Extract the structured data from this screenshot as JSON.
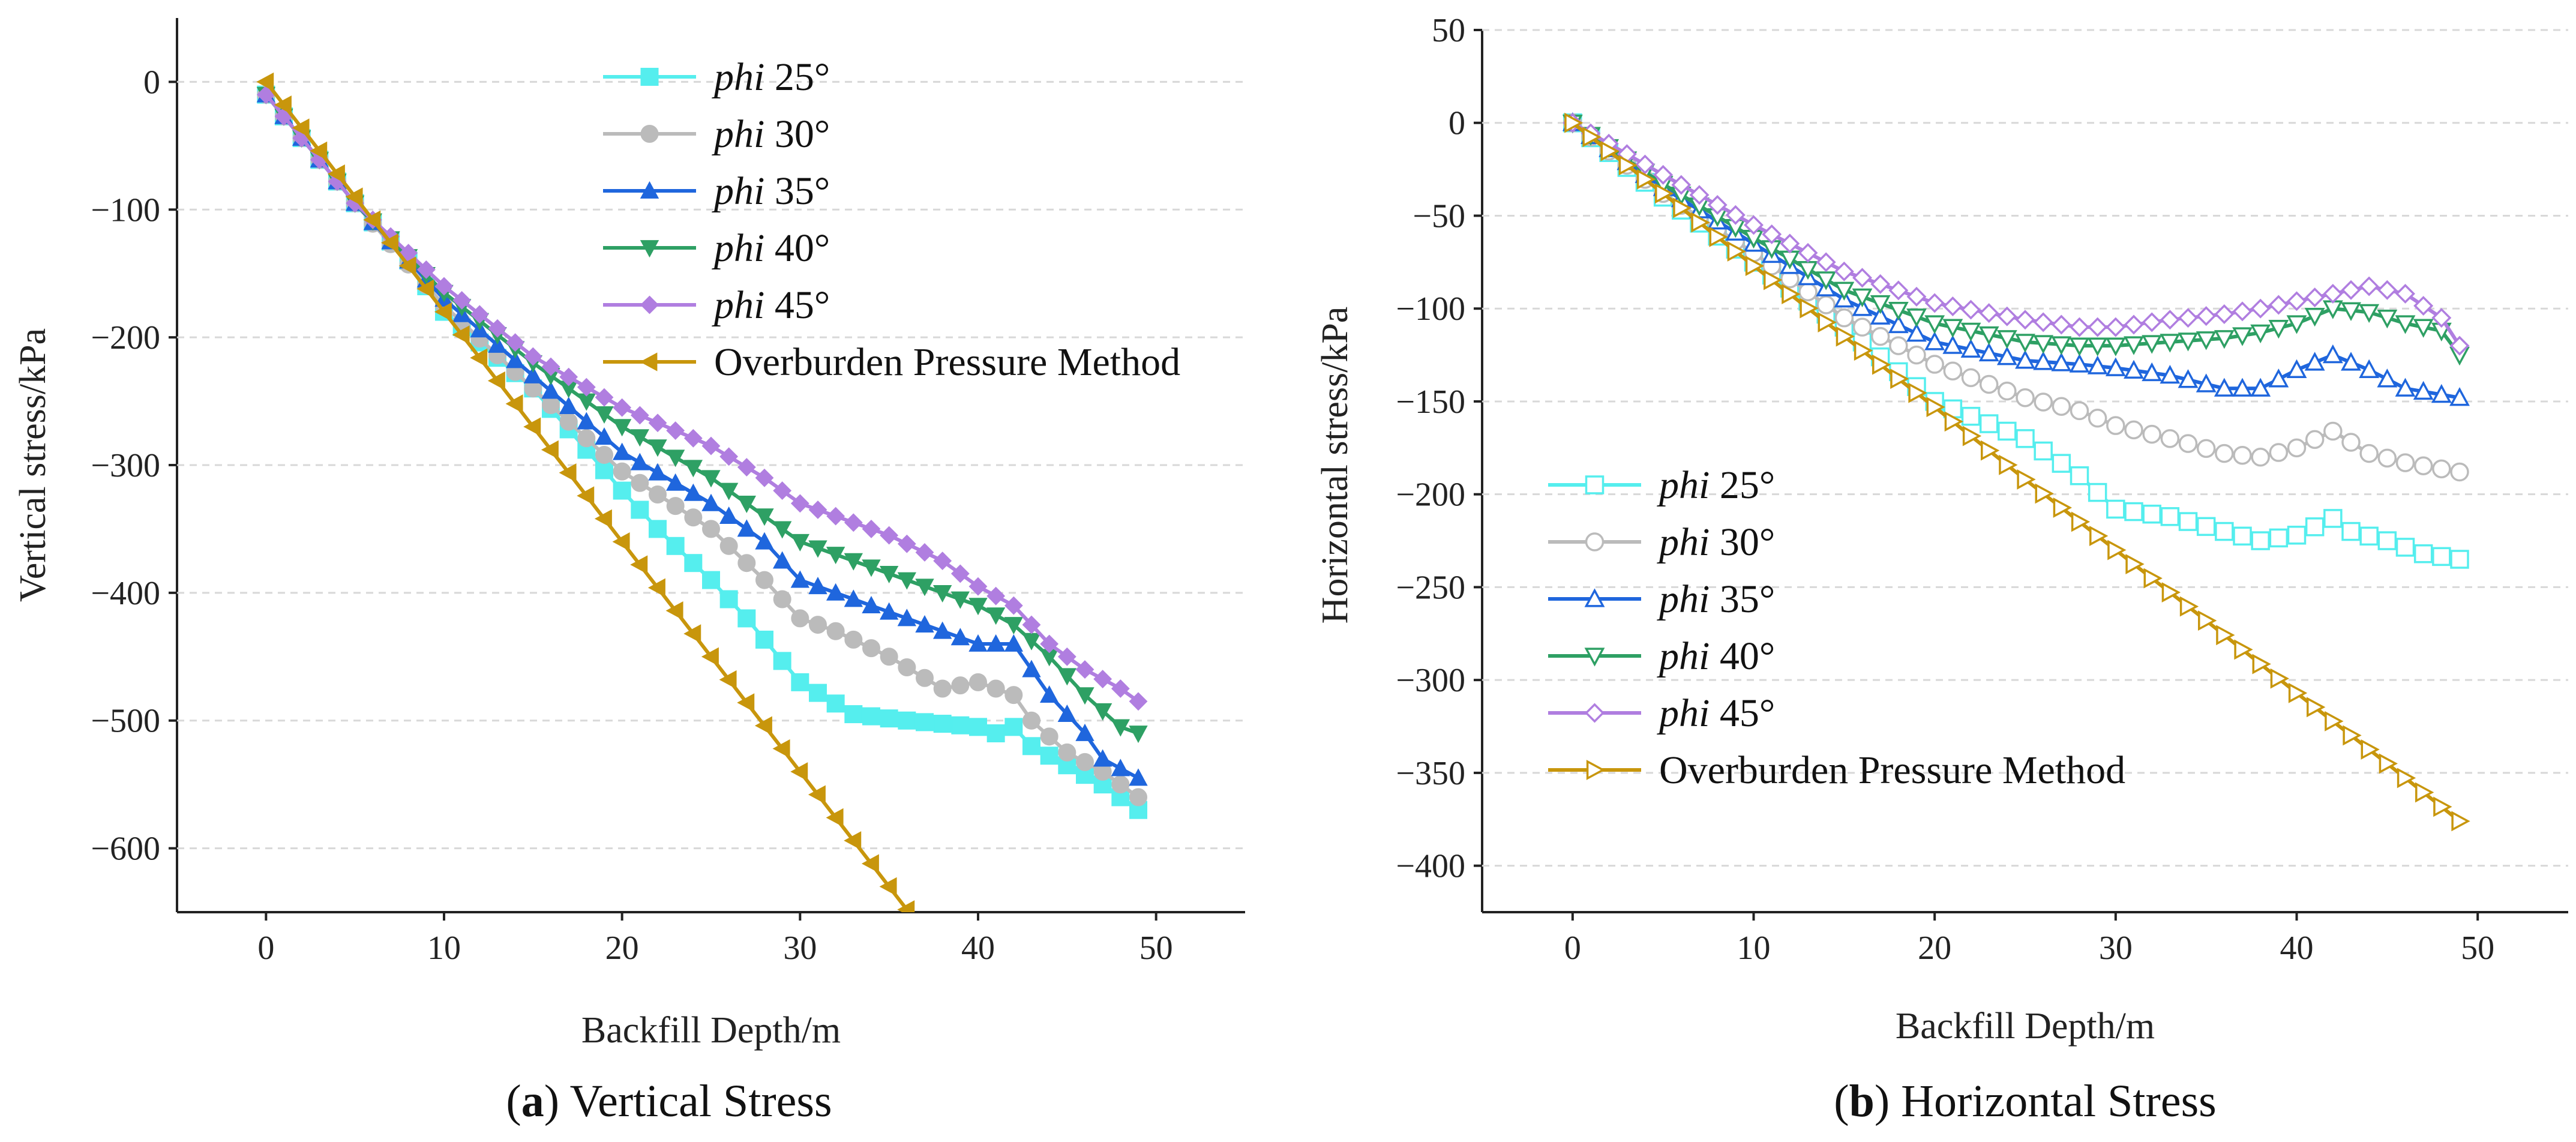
{
  "chart_data": [
    {
      "type": "line",
      "panel_letter": "a",
      "panel_caption": "Vertical Stress",
      "xlabel": "Backfill Depth/m",
      "ylabel": "Vertical stress/kPa",
      "xlim": [
        -5,
        55
      ],
      "ylim": [
        -650,
        50
      ],
      "xticks": [
        0,
        10,
        20,
        30,
        40,
        50
      ],
      "yticks": [
        0,
        -100,
        -200,
        -300,
        -400,
        -500,
        -600
      ],
      "grid": "horizontal-dashed",
      "legend_position": "top-center",
      "series": [
        {
          "name": "phi 25°",
          "label_prefix": "phi",
          "label_suffix": " 25°",
          "color": "#55EEEE",
          "marker": "square",
          "filled": true,
          "points": [
            [
              0,
              -10
            ],
            [
              5,
              -95
            ],
            [
              8,
              -140
            ],
            [
              10,
              -180
            ],
            [
              15,
              -240
            ],
            [
              20,
              -320
            ],
            [
              22,
              -350
            ],
            [
              25,
              -390
            ],
            [
              27,
              -420
            ],
            [
              30,
              -470
            ],
            [
              33,
              -495
            ],
            [
              36,
              -500
            ],
            [
              40,
              -505
            ],
            [
              41,
              -510
            ],
            [
              42,
              -505
            ],
            [
              43,
              -520
            ],
            [
              45,
              -535
            ],
            [
              47,
              -550
            ],
            [
              49,
              -570
            ]
          ]
        },
        {
          "name": "phi 30°",
          "label_prefix": "phi",
          "label_suffix": " 30°",
          "color": "#BBBBBB",
          "marker": "circle",
          "filled": true,
          "points": [
            [
              0,
              -10
            ],
            [
              5,
              -95
            ],
            [
              10,
              -175
            ],
            [
              15,
              -240
            ],
            [
              20,
              -305
            ],
            [
              25,
              -350
            ],
            [
              28,
              -390
            ],
            [
              30,
              -420
            ],
            [
              32,
              -430
            ],
            [
              35,
              -450
            ],
            [
              38,
              -475
            ],
            [
              40,
              -470
            ],
            [
              42,
              -480
            ],
            [
              43,
              -500
            ],
            [
              45,
              -525
            ],
            [
              47,
              -540
            ],
            [
              49,
              -560
            ]
          ]
        },
        {
          "name": "phi 35°",
          "label_prefix": "phi",
          "label_suffix": " 35°",
          "color": "#1F66DD",
          "marker": "triangle-up",
          "filled": true,
          "points": [
            [
              0,
              -10
            ],
            [
              5,
              -95
            ],
            [
              10,
              -170
            ],
            [
              15,
              -230
            ],
            [
              20,
              -290
            ],
            [
              25,
              -330
            ],
            [
              28,
              -360
            ],
            [
              30,
              -390
            ],
            [
              33,
              -405
            ],
            [
              36,
              -420
            ],
            [
              40,
              -440
            ],
            [
              42,
              -440
            ],
            [
              44,
              -480
            ],
            [
              46,
              -510
            ],
            [
              47,
              -530
            ],
            [
              49,
              -545
            ]
          ]
        },
        {
          "name": "phi 40°",
          "label_prefix": "phi",
          "label_suffix": " 40°",
          "color": "#2EA064",
          "marker": "triangle-down",
          "filled": true,
          "points": [
            [
              0,
              -10
            ],
            [
              5,
              -95
            ],
            [
              10,
              -165
            ],
            [
              15,
              -220
            ],
            [
              20,
              -270
            ],
            [
              25,
              -310
            ],
            [
              28,
              -340
            ],
            [
              30,
              -360
            ],
            [
              33,
              -375
            ],
            [
              36,
              -390
            ],
            [
              38,
              -400
            ],
            [
              40,
              -410
            ],
            [
              42,
              -425
            ],
            [
              44,
              -450
            ],
            [
              46,
              -480
            ],
            [
              48,
              -505
            ],
            [
              49,
              -510
            ]
          ]
        },
        {
          "name": "phi 45°",
          "label_prefix": "phi",
          "label_suffix": " 45°",
          "color": "#B07EE0",
          "marker": "diamond",
          "filled": true,
          "points": [
            [
              0,
              -10
            ],
            [
              5,
              -95
            ],
            [
              10,
              -160
            ],
            [
              15,
              -215
            ],
            [
              20,
              -255
            ],
            [
              25,
              -285
            ],
            [
              28,
              -310
            ],
            [
              30,
              -330
            ],
            [
              33,
              -345
            ],
            [
              35,
              -355
            ],
            [
              38,
              -375
            ],
            [
              40,
              -395
            ],
            [
              42,
              -410
            ],
            [
              44,
              -440
            ],
            [
              46,
              -460
            ],
            [
              48,
              -475
            ],
            [
              49,
              -485
            ]
          ]
        },
        {
          "name": "Overburden Pressure Method",
          "label_prefix": "",
          "label_suffix": "Overburden Pressure Method",
          "color": "#C8960C",
          "marker": "triangle-left",
          "filled": true,
          "points": [
            [
              0,
              0
            ],
            [
              5,
              -90
            ],
            [
              10,
              -180
            ],
            [
              15,
              -270
            ],
            [
              20,
              -360
            ],
            [
              25,
              -450
            ],
            [
              30,
              -540
            ],
            [
              35,
              -630
            ],
            [
              36,
              -648
            ]
          ]
        }
      ]
    },
    {
      "type": "line",
      "panel_letter": "b",
      "panel_caption": "Horizontal Stress",
      "xlabel": "Backfill Depth/m",
      "ylabel": "Horizontal stress/kPa",
      "xlim": [
        -5,
        55
      ],
      "ylim": [
        -425,
        50
      ],
      "xticks": [
        0,
        10,
        20,
        30,
        40,
        50
      ],
      "yticks": [
        50,
        0,
        -50,
        -100,
        -150,
        -200,
        -250,
        -300,
        -350,
        -400
      ],
      "grid": "horizontal-dashed",
      "legend_position": "bottom-left",
      "series": [
        {
          "name": "phi 25°",
          "label_prefix": "phi",
          "label_suffix": " 25°",
          "color": "#55EEEE",
          "marker": "square",
          "filled": false,
          "points": [
            [
              0,
              0
            ],
            [
              5,
              -40
            ],
            [
              10,
              -75
            ],
            [
              15,
              -110
            ],
            [
              20,
              -150
            ],
            [
              25,
              -170
            ],
            [
              28,
              -190
            ],
            [
              30,
              -208
            ],
            [
              33,
              -212
            ],
            [
              36,
              -220
            ],
            [
              38,
              -225
            ],
            [
              40,
              -222
            ],
            [
              42,
              -213
            ],
            [
              43,
              -220
            ],
            [
              45,
              -225
            ],
            [
              47,
              -232
            ],
            [
              49,
              -235
            ]
          ]
        },
        {
          "name": "phi 30°",
          "label_prefix": "phi",
          "label_suffix": " 30°",
          "color": "#BBBBBB",
          "marker": "circle",
          "filled": false,
          "points": [
            [
              0,
              0
            ],
            [
              5,
              -38
            ],
            [
              10,
              -70
            ],
            [
              15,
              -105
            ],
            [
              20,
              -130
            ],
            [
              25,
              -148
            ],
            [
              28,
              -155
            ],
            [
              30,
              -163
            ],
            [
              33,
              -170
            ],
            [
              36,
              -178
            ],
            [
              38,
              -180
            ],
            [
              40,
              -175
            ],
            [
              42,
              -166
            ],
            [
              44,
              -178
            ],
            [
              46,
              -183
            ],
            [
              49,
              -188
            ]
          ]
        },
        {
          "name": "phi 35°",
          "label_prefix": "phi",
          "label_suffix": " 35°",
          "color": "#1F66DD",
          "marker": "triangle-up",
          "filled": false,
          "points": [
            [
              0,
              0
            ],
            [
              5,
              -35
            ],
            [
              10,
              -65
            ],
            [
              15,
              -95
            ],
            [
              20,
              -118
            ],
            [
              25,
              -128
            ],
            [
              28,
              -130
            ],
            [
              30,
              -132
            ],
            [
              33,
              -136
            ],
            [
              36,
              -143
            ],
            [
              38,
              -143
            ],
            [
              40,
              -133
            ],
            [
              42,
              -125
            ],
            [
              44,
              -133
            ],
            [
              46,
              -143
            ],
            [
              49,
              -148
            ]
          ]
        },
        {
          "name": "phi 40°",
          "label_prefix": "phi",
          "label_suffix": " 40°",
          "color": "#2EA064",
          "marker": "triangle-down",
          "filled": false,
          "points": [
            [
              0,
              0
            ],
            [
              5,
              -33
            ],
            [
              10,
              -62
            ],
            [
              15,
              -90
            ],
            [
              20,
              -108
            ],
            [
              25,
              -118
            ],
            [
              28,
              -120
            ],
            [
              30,
              -120
            ],
            [
              33,
              -118
            ],
            [
              36,
              -116
            ],
            [
              38,
              -113
            ],
            [
              40,
              -108
            ],
            [
              42,
              -100
            ],
            [
              44,
              -102
            ],
            [
              46,
              -108
            ],
            [
              48,
              -112
            ],
            [
              49,
              -125
            ]
          ]
        },
        {
          "name": "phi 45°",
          "label_prefix": "phi",
          "label_suffix": " 45°",
          "color": "#B07EE0",
          "marker": "diamond",
          "filled": false,
          "points": [
            [
              0,
              0
            ],
            [
              5,
              -28
            ],
            [
              10,
              -55
            ],
            [
              15,
              -80
            ],
            [
              20,
              -97
            ],
            [
              25,
              -106
            ],
            [
              28,
              -110
            ],
            [
              30,
              -110
            ],
            [
              33,
              -106
            ],
            [
              36,
              -103
            ],
            [
              38,
              -100
            ],
            [
              40,
              -96
            ],
            [
              42,
              -92
            ],
            [
              44,
              -88
            ],
            [
              46,
              -92
            ],
            [
              48,
              -105
            ],
            [
              49,
              -120
            ]
          ]
        },
        {
          "name": "Overburden Pressure Method",
          "label_prefix": "",
          "label_suffix": "Overburden Pressure Method",
          "color": "#C8960C",
          "marker": "triangle-right",
          "filled": false,
          "points": [
            [
              0,
              0
            ],
            [
              5,
              -38
            ],
            [
              10,
              -77
            ],
            [
              15,
              -115
            ],
            [
              20,
              -153
            ],
            [
              25,
              -192
            ],
            [
              30,
              -230
            ],
            [
              35,
              -268
            ],
            [
              40,
              -307
            ],
            [
              45,
              -345
            ],
            [
              49,
              -376
            ]
          ]
        }
      ]
    }
  ]
}
